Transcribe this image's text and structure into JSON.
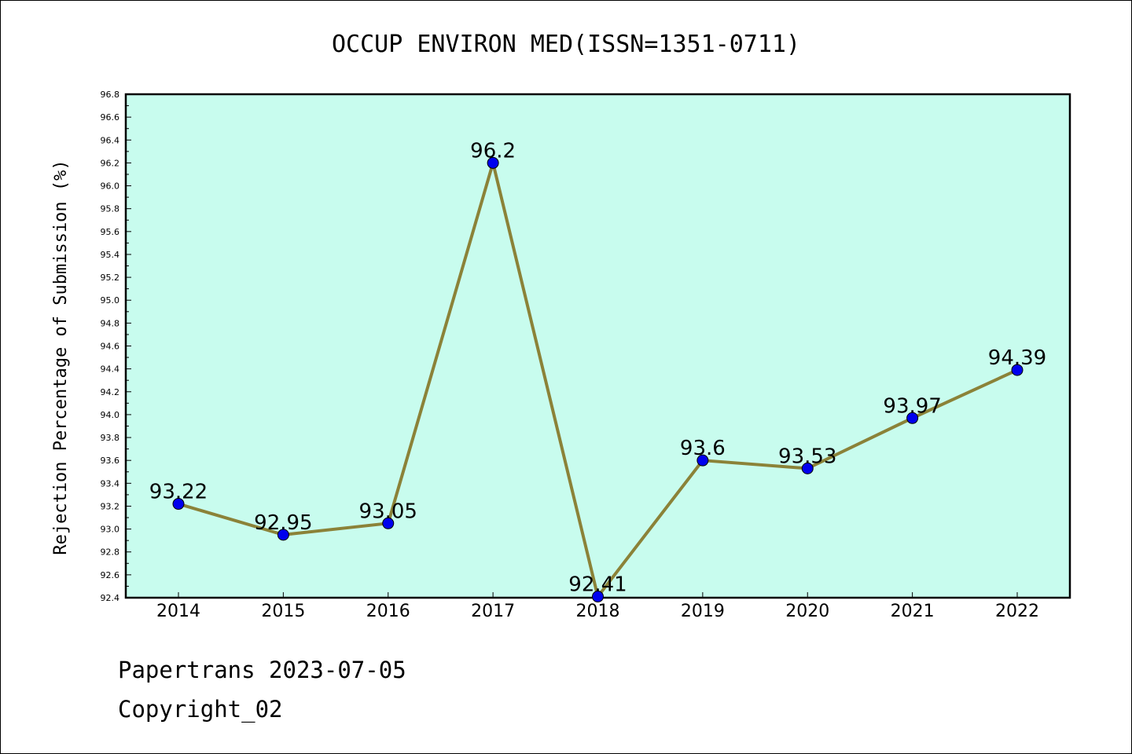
{
  "chart_data": {
    "type": "line",
    "title": "OCCUP ENVIRON MED(ISSN=1351-0711)",
    "xlabel": "",
    "ylabel": "Rejection Percentage of Submission (%)",
    "categories": [
      "2014",
      "2015",
      "2016",
      "2017",
      "2018",
      "2019",
      "2020",
      "2021",
      "2022"
    ],
    "values": [
      93.22,
      92.95,
      93.05,
      96.2,
      92.41,
      93.6,
      93.53,
      93.97,
      94.39
    ],
    "data_labels": [
      "93.22",
      "92.95",
      "93.05",
      "96.2",
      "92.41",
      "93.6",
      "93.53",
      "93.97",
      "94.39"
    ],
    "ylim": [
      92.4,
      96.8
    ],
    "yticks": [
      "92.4",
      "92.6",
      "92.8",
      "93.0",
      "93.2",
      "93.4",
      "93.6",
      "93.8",
      "94.0",
      "94.2",
      "94.4",
      "94.6",
      "94.8",
      "95.0",
      "95.2",
      "95.4",
      "95.6",
      "95.8",
      "96.0",
      "96.2",
      "96.4",
      "96.6",
      "96.8"
    ],
    "grid": false,
    "colors": {
      "plot_background": "#c8fcee",
      "line": "#8b8238",
      "marker": "#0000ee"
    }
  },
  "footer": {
    "line1": "Papertrans 2023-07-05",
    "line2": "Copyright_02"
  }
}
